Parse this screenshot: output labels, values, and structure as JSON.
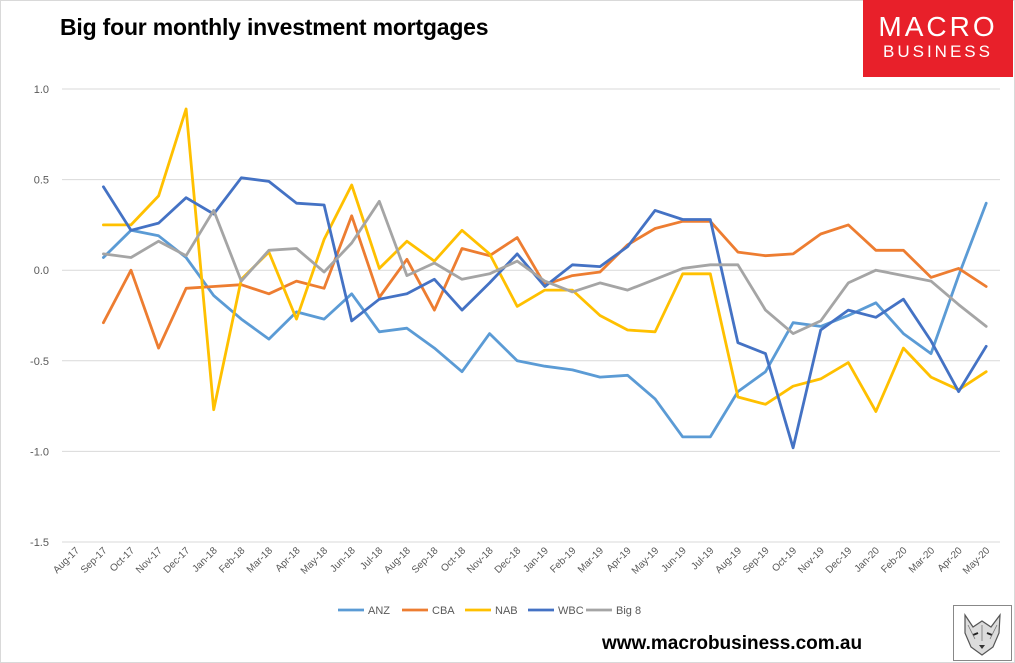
{
  "logo": {
    "line1": "MACRO",
    "line2": "BUSINESS",
    "color": "#e8202a"
  },
  "footer": {
    "url": "www.macrobusiness.com.au"
  },
  "chart_data": {
    "type": "line",
    "title": "Big four monthly investment mortgages",
    "xlabel": "",
    "ylabel": "",
    "ylim": [
      -1.5,
      1.0
    ],
    "yticks": [
      "1.0",
      "0.5",
      "0.0",
      "-0.5",
      "-1.0",
      "-1.5"
    ],
    "ytick_values": [
      1.0,
      0.5,
      0.0,
      -0.5,
      -1.0,
      -1.5
    ],
    "grid": true,
    "legend": "bottom",
    "categories": [
      "Aug-17",
      "Sep-17",
      "Oct-17",
      "Nov-17",
      "Dec-17",
      "Jan-18",
      "Feb-18",
      "Mar-18",
      "Apr-18",
      "May-18",
      "Jun-18",
      "Jul-18",
      "Aug-18",
      "Sep-18",
      "Oct-18",
      "Nov-18",
      "Dec-18",
      "Jan-19",
      "Feb-19",
      "Mar-19",
      "Apr-19",
      "May-19",
      "Jun-19",
      "Jul-19",
      "Aug-19",
      "Sep-19",
      "Oct-19",
      "Nov-19",
      "Dec-19",
      "Jan-20",
      "Feb-20",
      "Mar-20",
      "Apr-20",
      "May-20"
    ],
    "series": [
      {
        "name": "ANZ",
        "color": "#5b9bd5",
        "values": [
          null,
          0.07,
          0.22,
          0.19,
          0.07,
          -0.14,
          -0.27,
          -0.38,
          -0.23,
          -0.27,
          -0.13,
          -0.34,
          -0.32,
          -0.43,
          -0.56,
          -0.35,
          -0.5,
          -0.53,
          -0.55,
          -0.59,
          -0.58,
          -0.71,
          -0.92,
          -0.92,
          -0.67,
          -0.56,
          -0.29,
          -0.31,
          -0.25,
          -0.18,
          -0.35,
          -0.46,
          -0.03,
          0.37
        ]
      },
      {
        "name": "CBA",
        "color": "#ed7d31",
        "values": [
          null,
          -0.29,
          0.0,
          -0.43,
          -0.1,
          -0.09,
          -0.08,
          -0.13,
          -0.06,
          -0.1,
          0.3,
          -0.15,
          0.06,
          -0.22,
          0.12,
          0.08,
          0.18,
          -0.08,
          -0.03,
          -0.01,
          0.14,
          0.23,
          0.27,
          0.27,
          0.1,
          0.08,
          0.09,
          0.2,
          0.25,
          0.11,
          0.11,
          -0.04,
          0.01,
          -0.09
        ]
      },
      {
        "name": "NAB",
        "color": "#ffc000",
        "values": [
          null,
          0.25,
          0.25,
          0.41,
          0.89,
          -0.77,
          -0.05,
          0.1,
          -0.27,
          0.17,
          0.47,
          0.01,
          0.16,
          0.05,
          0.22,
          0.09,
          -0.2,
          -0.11,
          -0.11,
          -0.25,
          -0.33,
          -0.34,
          -0.02,
          -0.02,
          -0.7,
          -0.74,
          -0.64,
          -0.6,
          -0.51,
          -0.78,
          -0.43,
          -0.59,
          -0.66,
          -0.56
        ]
      },
      {
        "name": "WBC",
        "color": "#4472c4",
        "values": [
          null,
          0.46,
          0.22,
          0.26,
          0.4,
          0.31,
          0.51,
          0.49,
          0.37,
          0.36,
          -0.28,
          -0.16,
          -0.13,
          -0.05,
          -0.22,
          -0.07,
          0.09,
          -0.09,
          0.03,
          0.02,
          0.13,
          0.33,
          0.28,
          0.28,
          -0.4,
          -0.46,
          -0.98,
          -0.33,
          -0.22,
          -0.26,
          -0.16,
          -0.39,
          -0.67,
          -0.42
        ]
      },
      {
        "name": "Big 8",
        "color": "#a5a5a5",
        "values": [
          null,
          0.09,
          0.07,
          0.16,
          0.08,
          0.33,
          -0.06,
          0.11,
          0.12,
          -0.01,
          0.15,
          0.38,
          -0.03,
          0.04,
          -0.05,
          -0.02,
          0.05,
          -0.06,
          -0.12,
          -0.07,
          -0.11,
          -0.05,
          0.01,
          0.03,
          0.03,
          -0.22,
          -0.35,
          -0.28,
          -0.07,
          0.0,
          -0.03,
          -0.06,
          -0.19,
          -0.31
        ]
      }
    ]
  }
}
